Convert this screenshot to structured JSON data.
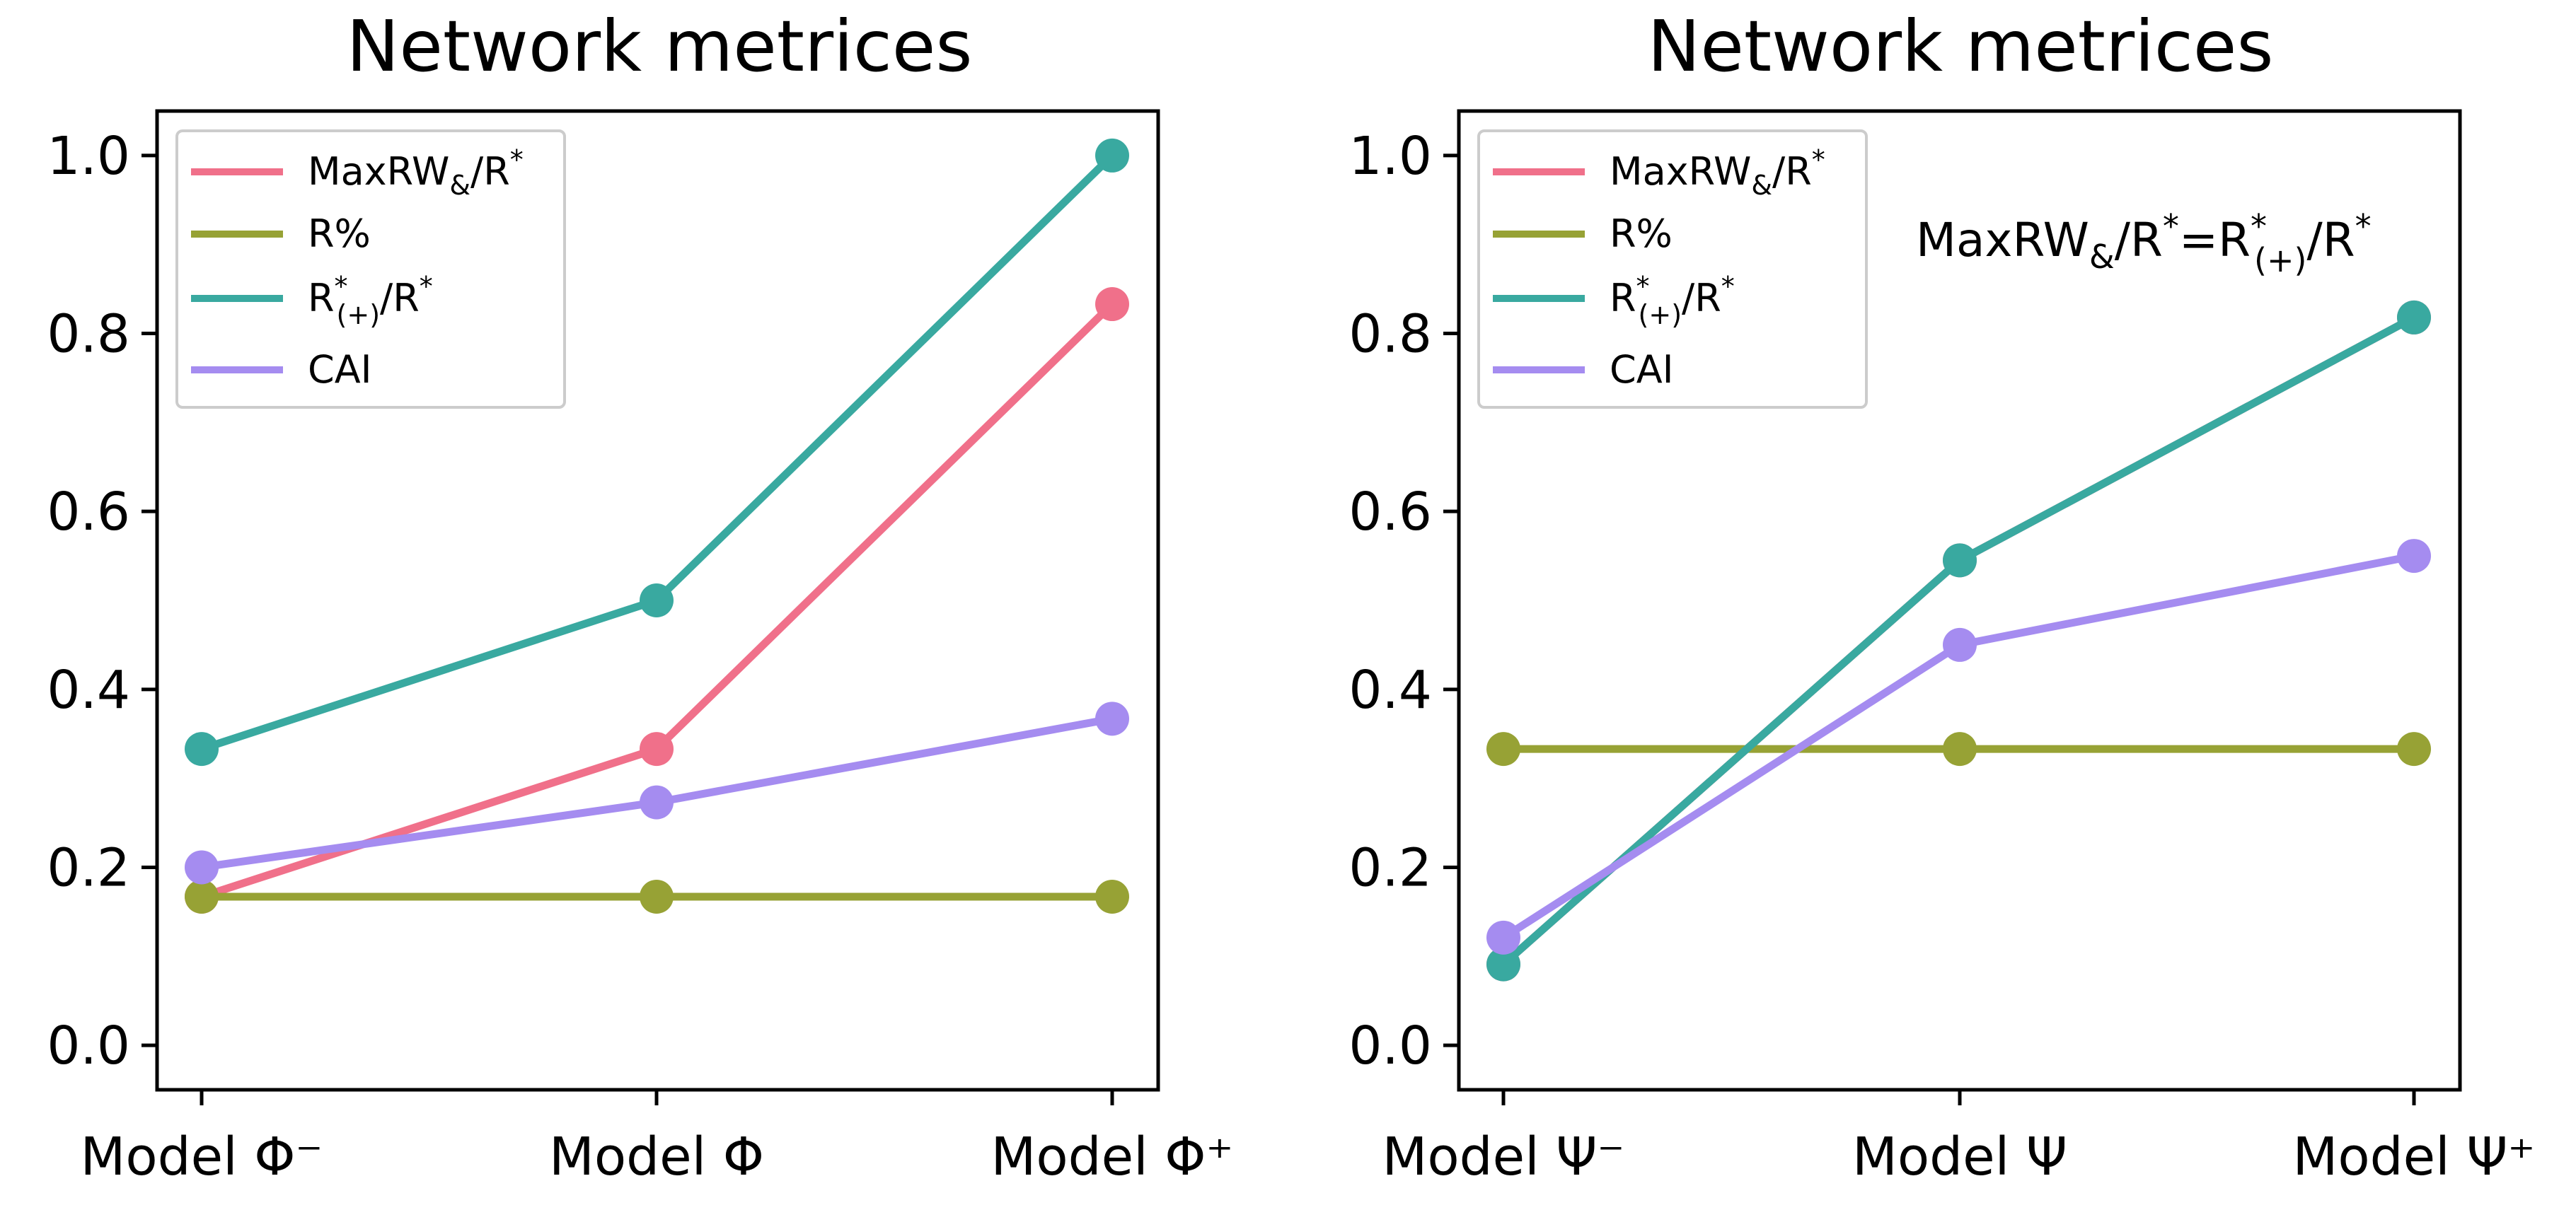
{
  "chart_data": [
    {
      "type": "line",
      "title": "Network metrices",
      "categories": [
        "Model Φ⁻",
        "Model Φ",
        "Model Φ⁺"
      ],
      "ylim": [
        -0.05,
        1.05
      ],
      "yticks": [
        "0.0",
        "0.2",
        "0.4",
        "0.6",
        "0.8",
        "1.0"
      ],
      "legend_position": "top-left",
      "series": [
        {
          "name": "MaxRW&/R*",
          "color": "#f0708a",
          "values": [
            0.167,
            0.333,
            0.833
          ]
        },
        {
          "name": "R%",
          "color": "#97a235",
          "values": [
            0.167,
            0.167,
            0.167
          ]
        },
        {
          "name": "R*(+)/R*",
          "color": "#39a9a0",
          "values": [
            0.333,
            0.5,
            1.0
          ]
        },
        {
          "name": "CAI",
          "color": "#a58cf0",
          "values": [
            0.2,
            0.273,
            0.367
          ]
        }
      ]
    },
    {
      "type": "line",
      "title": "Network metrices",
      "categories": [
        "Model Ψ⁻",
        "Model Ψ",
        "Model Ψ⁺"
      ],
      "ylim": [
        -0.05,
        1.05
      ],
      "yticks": [
        "0.0",
        "0.2",
        "0.4",
        "0.6",
        "0.8",
        "1.0"
      ],
      "legend_position": "top-left",
      "annotation": "MaxRW&/R* = R*(+)/R*",
      "series": [
        {
          "name": "MaxRW&/R*",
          "color": "#f0708a",
          "values": [
            0.091,
            0.545,
            0.818
          ]
        },
        {
          "name": "R%",
          "color": "#97a235",
          "values": [
            0.333,
            0.333,
            0.333
          ]
        },
        {
          "name": "R*(+)/R*",
          "color": "#39a9a0",
          "values": [
            0.091,
            0.545,
            0.818
          ]
        },
        {
          "name": "CAI",
          "color": "#a58cf0",
          "values": [
            0.121,
            0.45,
            0.55
          ]
        }
      ]
    }
  ]
}
